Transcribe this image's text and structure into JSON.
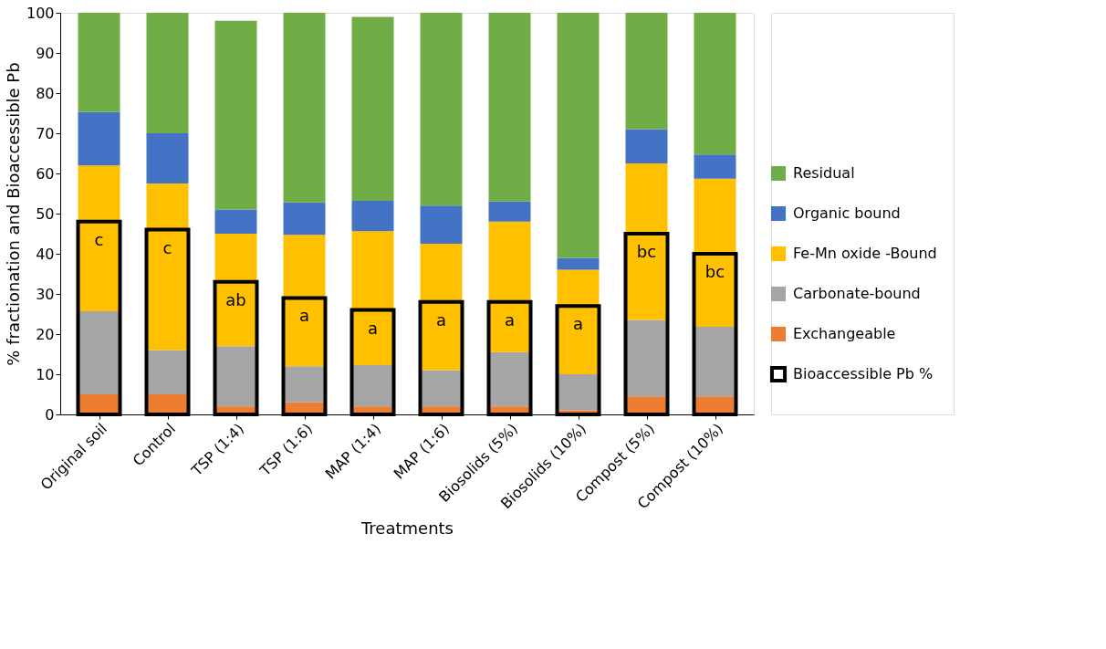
{
  "chart_data": {
    "type": "bar",
    "xlabel": "Treatments",
    "ylabel": "% fractionation  and Bioaccessible Pb",
    "categories": [
      "Original soil",
      "Control",
      "TSP (1:4)",
      "TSP (1:6)",
      "MAP (1:4)",
      "MAP (1:6)",
      "Biosolids (5%)",
      "Biosolids (10%)",
      "Compost (5%)",
      "Compost (10%)"
    ],
    "series": [
      {
        "name": "Exchangeable",
        "color": "#ed7d31",
        "base": [
          0,
          0,
          0,
          0,
          0,
          0,
          0,
          0,
          0,
          0
        ],
        "values": [
          5,
          5,
          2,
          3,
          2,
          2,
          2,
          1,
          4.5,
          4.5
        ]
      },
      {
        "name": "Carbonate-bound",
        "color": "#a5a5a5",
        "base": [
          5,
          5,
          2,
          3,
          2,
          2,
          2,
          1,
          4.5,
          4.5
        ],
        "values": [
          20.7,
          11,
          15,
          9,
          10.3,
          9,
          13.5,
          9,
          19,
          17.3
        ]
      },
      {
        "name": "Fe-Mn oxide -Bound",
        "color": "#ffc000",
        "base": [
          25.7,
          16,
          17,
          12,
          12.3,
          11,
          15.5,
          10,
          23.5,
          21.8
        ],
        "values": [
          36.3,
          41.5,
          28,
          32.7,
          33.3,
          31.5,
          32.5,
          26,
          39,
          36.9
        ]
      },
      {
        "name": "Organic bound",
        "color": "#4472c4",
        "base": [
          62,
          57.5,
          45,
          44.7,
          45.6,
          42.5,
          48,
          36,
          62.5,
          58.7
        ],
        "values": [
          13.3,
          12.5,
          6,
          8.1,
          7.6,
          9.5,
          5,
          3,
          8.5,
          6
        ]
      },
      {
        "name": "Residual",
        "color": "#70ad47",
        "base": [
          75.3,
          70,
          51,
          52.8,
          53.2,
          52,
          53,
          39,
          71,
          64.7
        ],
        "values": [
          24.7,
          30,
          47,
          47.2,
          45.8,
          48,
          47,
          61,
          29,
          35.3
        ]
      },
      {
        "name": "Bioaccessible Pb %",
        "type": "bar",
        "base": [
          0,
          0,
          0,
          0,
          0,
          0,
          0,
          0,
          0,
          0
        ],
        "color": "#000000",
        "values": [
          48,
          46,
          33,
          29,
          26,
          28,
          28,
          27,
          45,
          40
        ],
        "value_labels": [
          "c",
          "c",
          "ab",
          "a",
          "a",
          "a",
          "a",
          "a",
          "bc",
          "bc"
        ]
      }
    ],
    "ylim": [
      0,
      100
    ],
    "yticks": [
      0,
      10,
      20,
      30,
      40,
      50,
      60,
      70,
      80,
      90,
      100
    ],
    "grid": false,
    "legend": "right"
  }
}
